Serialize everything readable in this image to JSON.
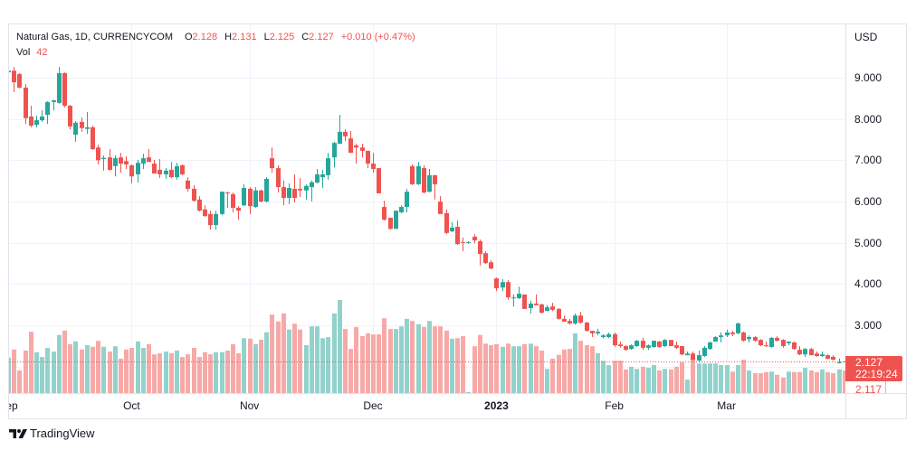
{
  "header": {
    "symbol_line": "Natural Gas, 1D, CURRENCYCOM",
    "open_label": "O",
    "open": "2.128",
    "high_label": "H",
    "high": "2.131",
    "low_label": "L",
    "low": "2.125",
    "close_label": "C",
    "close": "2.127",
    "change": "+0.010 (+0.47%)",
    "volume_label": "Vol",
    "volume": "42"
  },
  "price_axis": {
    "currency": "USD",
    "last_price": "2.127",
    "countdown": "22:19:24",
    "prev_close": "2.117"
  },
  "footer": {
    "brand": "TradingView"
  },
  "colors": {
    "up": "#26a69a",
    "down": "#ef5350",
    "volume_up": "#92d2cc",
    "volume_down": "#f7a9a7",
    "grid": "#f0f3fa",
    "text": "#131722"
  },
  "chart_data": {
    "type": "candlestick",
    "title": "Natural Gas, 1D, CURRENCYCOM",
    "ylabel": "USD",
    "xlabel": "",
    "ylim": [
      1.363,
      10.291
    ],
    "xlim": [
      0.16,
      149.19
    ],
    "grid": true,
    "last_price": 2.127,
    "y_grid": [
      2,
      3,
      4,
      5,
      6,
      7,
      8,
      9
    ],
    "y_ticks": [
      {
        "value": 9,
        "label": "9.000"
      },
      {
        "value": 8,
        "label": "8.000"
      },
      {
        "value": 7,
        "label": "7.000"
      },
      {
        "value": 6,
        "label": "6.000"
      },
      {
        "value": 5,
        "label": "5.000"
      },
      {
        "value": 4,
        "label": "4.000"
      },
      {
        "value": 3,
        "label": "3.000"
      }
    ],
    "x_ticks": [
      {
        "index": 0,
        "label": "Sep"
      },
      {
        "index": 22,
        "label": "Oct"
      },
      {
        "index": 43,
        "label": "Nov"
      },
      {
        "index": 65,
        "label": "Dec"
      },
      {
        "index": 87,
        "label": "2023",
        "major": true
      },
      {
        "index": 108,
        "label": "Feb"
      },
      {
        "index": 128,
        "label": "Mar"
      }
    ],
    "candle_fields": [
      "open",
      "high",
      "low",
      "close",
      "volume"
    ],
    "candles": [
      [
        9.13,
        9.2,
        9.1,
        9.17,
        66
      ],
      [
        9.17,
        9.26,
        8.65,
        8.89,
        81
      ],
      [
        9.09,
        9.11,
        8.74,
        8.76,
        42
      ],
      [
        8.76,
        8.85,
        7.88,
        8.02,
        79
      ],
      [
        8.06,
        8.32,
        7.8,
        7.84,
        114
      ],
      [
        7.86,
        8.08,
        7.8,
        7.97,
        76
      ],
      [
        7.97,
        8.21,
        7.93,
        8.06,
        67
      ],
      [
        8.1,
        8.43,
        7.88,
        8.41,
        84
      ],
      [
        8.41,
        8.47,
        8.21,
        8.45,
        77
      ],
      [
        8.39,
        9.26,
        8.37,
        9.11,
        108
      ],
      [
        9.11,
        9.13,
        8.28,
        8.32,
        116
      ],
      [
        8.32,
        8.34,
        7.75,
        7.82,
        91
      ],
      [
        7.62,
        7.95,
        7.45,
        7.91,
        96
      ],
      [
        7.93,
        8.04,
        7.69,
        7.78,
        81
      ],
      [
        7.76,
        8.17,
        7.64,
        7.8,
        89
      ],
      [
        7.8,
        7.84,
        7.25,
        7.27,
        86
      ],
      [
        7.31,
        7.38,
        6.9,
        7.0,
        97
      ],
      [
        7.03,
        7.12,
        6.75,
        7.06,
        86
      ],
      [
        7.07,
        7.27,
        6.75,
        6.77,
        77
      ],
      [
        6.86,
        7.12,
        6.61,
        7.05,
        87
      ],
      [
        7.07,
        7.18,
        6.7,
        6.92,
        64
      ],
      [
        6.98,
        7.1,
        6.79,
        6.9,
        81
      ],
      [
        6.88,
        6.9,
        6.44,
        6.61,
        84
      ],
      [
        6.66,
        7.01,
        6.46,
        6.94,
        96
      ],
      [
        6.92,
        7.16,
        6.79,
        7.05,
        84
      ],
      [
        7.07,
        7.27,
        6.96,
        6.96,
        91
      ],
      [
        6.92,
        7.01,
        6.68,
        6.68,
        72
      ],
      [
        6.77,
        7.03,
        6.57,
        6.66,
        74
      ],
      [
        6.66,
        6.81,
        6.55,
        6.75,
        77
      ],
      [
        6.77,
        6.96,
        6.57,
        6.59,
        74
      ],
      [
        6.59,
        6.94,
        6.53,
        6.86,
        79
      ],
      [
        6.88,
        6.9,
        6.64,
        6.66,
        67
      ],
      [
        6.51,
        6.59,
        6.24,
        6.31,
        72
      ],
      [
        6.31,
        6.4,
        6.0,
        6.02,
        84
      ],
      [
        6.05,
        6.13,
        5.76,
        5.78,
        67
      ],
      [
        5.81,
        5.91,
        5.63,
        5.65,
        76
      ],
      [
        5.7,
        5.78,
        5.32,
        5.43,
        72
      ],
      [
        5.43,
        5.78,
        5.32,
        5.7,
        76
      ],
      [
        5.7,
        6.24,
        5.67,
        6.24,
        76
      ],
      [
        6.22,
        6.24,
        5.85,
        6.2,
        79
      ],
      [
        6.18,
        6.22,
        5.74,
        5.85,
        91
      ],
      [
        5.85,
        5.89,
        5.56,
        5.78,
        74
      ],
      [
        5.91,
        6.42,
        5.89,
        6.33,
        102
      ],
      [
        6.31,
        6.35,
        5.7,
        5.89,
        101
      ],
      [
        5.87,
        6.35,
        5.85,
        6.27,
        91
      ],
      [
        6.27,
        6.29,
        5.98,
        6.0,
        99
      ],
      [
        6.0,
        6.59,
        5.98,
        6.55,
        113
      ],
      [
        7.05,
        7.31,
        6.7,
        6.81,
        146
      ],
      [
        6.81,
        6.88,
        6.22,
        6.35,
        133
      ],
      [
        6.35,
        6.51,
        5.91,
        6.09,
        148
      ],
      [
        6.09,
        6.44,
        5.94,
        6.33,
        118
      ],
      [
        6.31,
        6.66,
        5.98,
        6.09,
        129
      ],
      [
        6.31,
        6.57,
        6.11,
        6.27,
        118
      ],
      [
        6.27,
        6.42,
        6.05,
        6.38,
        89
      ],
      [
        6.35,
        6.51,
        6.0,
        6.47,
        124
      ],
      [
        6.46,
        6.79,
        6.44,
        6.66,
        124
      ],
      [
        6.59,
        6.77,
        6.33,
        6.66,
        102
      ],
      [
        6.64,
        7.18,
        6.53,
        7.05,
        104
      ],
      [
        7.07,
        7.45,
        6.83,
        7.42,
        148
      ],
      [
        7.4,
        8.1,
        7.4,
        7.69,
        173
      ],
      [
        7.69,
        7.75,
        7.47,
        7.58,
        119
      ],
      [
        7.53,
        7.71,
        7.18,
        7.18,
        82
      ],
      [
        7.36,
        7.4,
        6.92,
        7.31,
        123
      ],
      [
        7.31,
        7.4,
        7.07,
        7.23,
        106
      ],
      [
        7.23,
        7.23,
        6.81,
        6.92,
        111
      ],
      [
        6.92,
        7.18,
        6.7,
        6.79,
        109
      ],
      [
        6.81,
        6.81,
        6.2,
        6.2,
        109
      ],
      [
        5.87,
        6.02,
        5.54,
        5.56,
        139
      ],
      [
        5.61,
        5.61,
        5.32,
        5.34,
        119
      ],
      [
        5.34,
        5.78,
        5.34,
        5.78,
        119
      ],
      [
        5.74,
        5.91,
        5.72,
        5.87,
        124
      ],
      [
        5.87,
        6.31,
        5.74,
        6.24,
        138
      ],
      [
        6.86,
        6.9,
        6.4,
        6.42,
        134
      ],
      [
        6.42,
        6.96,
        6.4,
        6.86,
        128
      ],
      [
        6.81,
        6.88,
        6.2,
        6.22,
        123
      ],
      [
        6.24,
        6.79,
        6.22,
        6.64,
        134
      ],
      [
        6.64,
        6.64,
        6.05,
        6.42,
        124
      ],
      [
        6.0,
        6.13,
        5.7,
        5.7,
        124
      ],
      [
        5.72,
        5.81,
        5.21,
        5.24,
        116
      ],
      [
        5.28,
        5.5,
        5.26,
        5.37,
        101
      ],
      [
        5.39,
        5.54,
        4.95,
        4.97,
        102
      ],
      [
        5.02,
        5.13,
        4.8,
        5.0,
        106
      ],
      [
        5.0,
        5.04,
        4.98,
        5.02,
        2
      ],
      [
        5.15,
        5.21,
        4.99,
        5.06,
        87
      ],
      [
        5.04,
        5.08,
        4.45,
        4.73,
        108
      ],
      [
        4.75,
        4.8,
        4.49,
        4.51,
        92
      ],
      [
        4.53,
        4.58,
        4.36,
        4.38,
        89
      ],
      [
        4.14,
        4.16,
        3.83,
        3.9,
        91
      ],
      [
        3.92,
        4.12,
        3.83,
        4.05,
        86
      ],
      [
        4.05,
        4.1,
        3.62,
        3.68,
        92
      ],
      [
        3.66,
        3.75,
        3.46,
        3.68,
        87
      ],
      [
        3.66,
        3.94,
        3.64,
        3.77,
        87
      ],
      [
        3.75,
        3.75,
        3.4,
        3.4,
        91
      ],
      [
        3.42,
        3.6,
        3.29,
        3.53,
        92
      ],
      [
        3.53,
        3.75,
        3.49,
        3.49,
        87
      ],
      [
        3.51,
        3.53,
        3.29,
        3.31,
        79
      ],
      [
        3.35,
        3.49,
        3.35,
        3.44,
        45
      ],
      [
        3.46,
        3.55,
        3.35,
        3.38,
        64
      ],
      [
        3.4,
        3.42,
        3.14,
        3.16,
        71
      ],
      [
        3.16,
        3.24,
        3.09,
        3.09,
        81
      ],
      [
        3.11,
        3.16,
        3.02,
        3.05,
        82
      ],
      [
        3.05,
        3.29,
        3.02,
        3.24,
        111
      ],
      [
        3.24,
        3.33,
        3.05,
        3.07,
        97
      ],
      [
        3.07,
        3.09,
        2.85,
        2.87,
        89
      ],
      [
        2.87,
        2.87,
        2.72,
        2.81,
        87
      ],
      [
        2.81,
        2.92,
        2.76,
        2.85,
        74
      ],
      [
        2.72,
        2.79,
        2.69,
        2.76,
        60
      ],
      [
        2.72,
        2.83,
        2.69,
        2.79,
        52
      ],
      [
        2.79,
        2.83,
        2.48,
        2.52,
        60
      ],
      [
        2.54,
        2.61,
        2.46,
        2.5,
        60
      ],
      [
        2.5,
        2.52,
        2.39,
        2.41,
        44
      ],
      [
        2.43,
        2.54,
        2.41,
        2.52,
        49
      ],
      [
        2.5,
        2.65,
        2.48,
        2.63,
        45
      ],
      [
        2.63,
        2.7,
        2.41,
        2.46,
        49
      ],
      [
        2.46,
        2.54,
        2.41,
        2.52,
        47
      ],
      [
        2.48,
        2.63,
        2.46,
        2.63,
        52
      ],
      [
        2.61,
        2.63,
        2.46,
        2.48,
        42
      ],
      [
        2.5,
        2.67,
        2.48,
        2.65,
        45
      ],
      [
        2.65,
        2.65,
        2.5,
        2.5,
        44
      ],
      [
        2.52,
        2.61,
        2.43,
        2.46,
        49
      ],
      [
        2.5,
        2.5,
        2.28,
        2.3,
        57
      ],
      [
        2.28,
        2.37,
        2.28,
        2.32,
        25
      ],
      [
        2.32,
        2.37,
        2.15,
        2.17,
        64
      ],
      [
        2.15,
        2.39,
        2.13,
        2.28,
        55
      ],
      [
        2.26,
        2.5,
        2.24,
        2.46,
        55
      ],
      [
        2.43,
        2.61,
        2.41,
        2.59,
        55
      ],
      [
        2.61,
        2.74,
        2.61,
        2.72,
        55
      ],
      [
        2.72,
        2.83,
        2.59,
        2.76,
        52
      ],
      [
        2.76,
        2.9,
        2.72,
        2.83,
        52
      ],
      [
        2.83,
        2.87,
        2.74,
        2.79,
        40
      ],
      [
        2.81,
        3.07,
        2.79,
        3.05,
        52
      ],
      [
        2.83,
        2.85,
        2.61,
        2.63,
        62
      ],
      [
        2.67,
        2.76,
        2.59,
        2.72,
        42
      ],
      [
        2.72,
        2.74,
        2.61,
        2.63,
        37
      ],
      [
        2.65,
        2.67,
        2.5,
        2.52,
        37
      ],
      [
        2.52,
        2.61,
        2.48,
        2.5,
        39
      ],
      [
        2.48,
        2.72,
        2.46,
        2.7,
        40
      ],
      [
        2.7,
        2.74,
        2.61,
        2.63,
        34
      ],
      [
        2.65,
        2.67,
        2.46,
        2.5,
        29
      ],
      [
        2.57,
        2.61,
        2.52,
        2.61,
        40
      ],
      [
        2.59,
        2.61,
        2.41,
        2.43,
        39
      ],
      [
        2.41,
        2.5,
        2.28,
        2.3,
        39
      ],
      [
        2.3,
        2.46,
        2.24,
        2.43,
        47
      ],
      [
        2.43,
        2.46,
        2.28,
        2.28,
        42
      ],
      [
        2.32,
        2.37,
        2.24,
        2.26,
        39
      ],
      [
        2.26,
        2.37,
        2.24,
        2.3,
        44
      ],
      [
        2.28,
        2.3,
        2.19,
        2.19,
        39
      ],
      [
        2.24,
        2.28,
        2.15,
        2.17,
        37
      ],
      [
        2.09,
        2.2,
        2.08,
        2.117,
        44
      ],
      [
        2.128,
        2.131,
        2.125,
        2.127,
        42
      ]
    ]
  }
}
